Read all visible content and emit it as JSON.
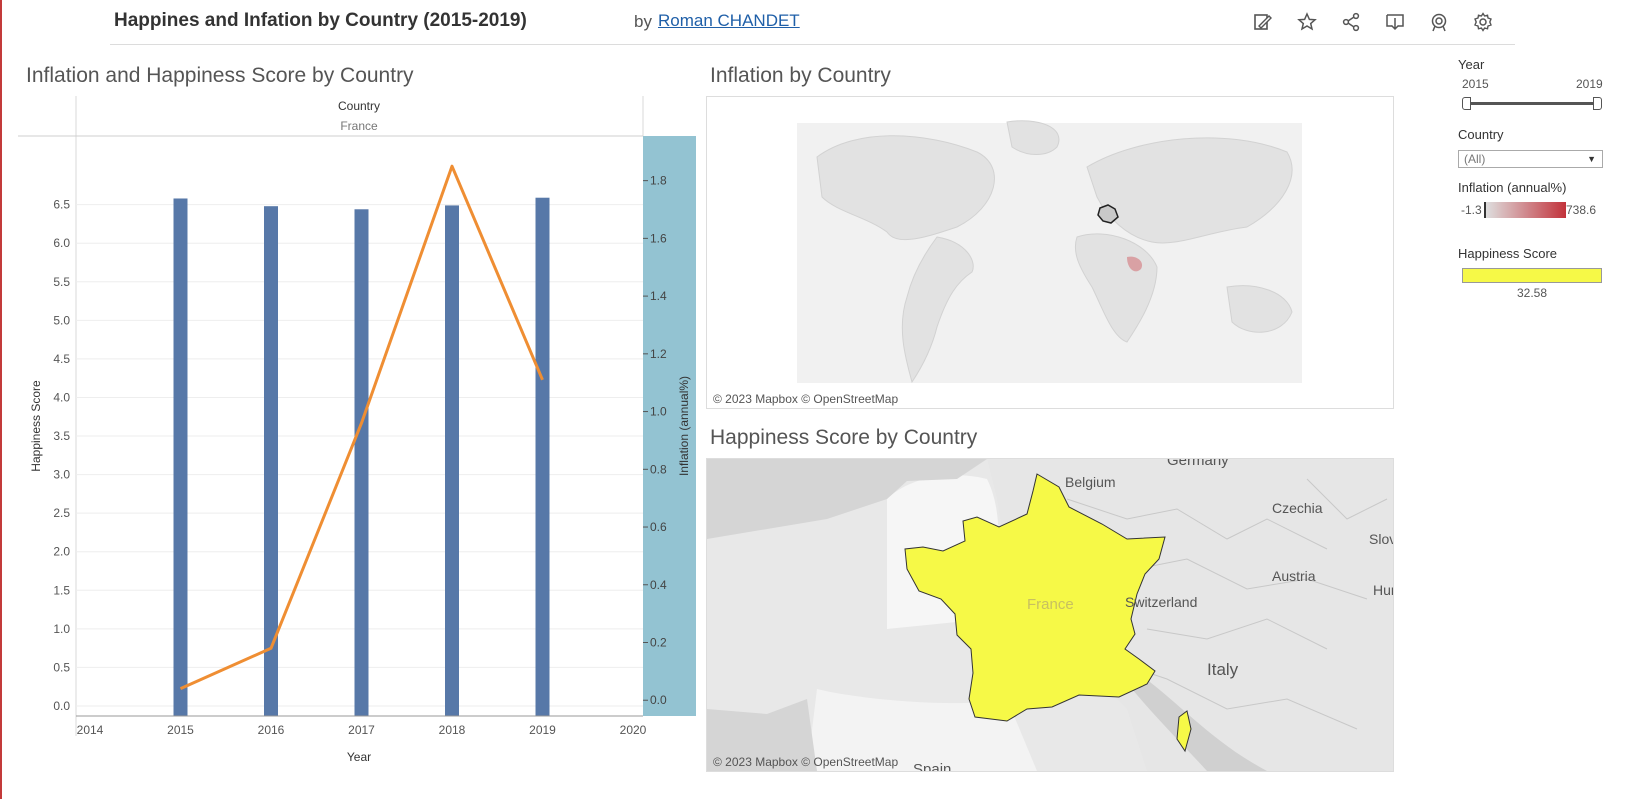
{
  "header": {
    "title": "Happines and Infation by Country (2015-2019)",
    "by": "by",
    "author": "Roman CHANDET",
    "icons": [
      "edit-icon",
      "favorite-star-icon",
      "share-icon",
      "download-icon",
      "metrics-icon",
      "settings-gear-icon"
    ]
  },
  "combo_chart": {
    "title": "Inflation and Happiness Score by Country",
    "column_header": "Country",
    "column_value": "France"
  },
  "chart_data": {
    "type": "bar",
    "x_label": "Year",
    "x_ticks": [
      "2014",
      "2015",
      "2016",
      "2017",
      "2018",
      "2019",
      "2020"
    ],
    "categories": [
      "2015",
      "2016",
      "2017",
      "2018",
      "2019"
    ],
    "y_label": "Happiness Score",
    "y_ticks": [
      "0.0",
      "0.5",
      "1.0",
      "1.5",
      "2.0",
      "2.5",
      "3.0",
      "3.5",
      "4.0",
      "4.5",
      "5.0",
      "5.5",
      "6.0",
      "6.5"
    ],
    "ylim": [
      0,
      7
    ],
    "y2_label": "Inflation (annual%)",
    "y2_ticks": [
      "0.0",
      "0.2",
      "0.4",
      "0.6",
      "0.8",
      "1.0",
      "1.2",
      "1.4",
      "1.6",
      "1.8"
    ],
    "y2lim": [
      -0.02,
      1.92
    ],
    "series": [
      {
        "name": "Happiness Score",
        "type": "bar",
        "axis": "left",
        "color": "#5778a8",
        "values": [
          6.58,
          6.48,
          6.44,
          6.49,
          6.59
        ]
      },
      {
        "name": "Inflation (annual%)",
        "type": "line",
        "axis": "right",
        "color": "#ef8e33",
        "values": [
          0.04,
          0.18,
          0.96,
          1.85,
          1.11
        ]
      }
    ]
  },
  "map_inflation": {
    "title": "Inflation by Country",
    "attribution": "© 2023 Mapbox  © OpenStreetMap"
  },
  "map_happiness": {
    "title": "Happiness Score by Country",
    "attribution": "© 2023 Mapbox  © OpenStreetMap",
    "labels": {
      "germany": "Germany",
      "belgium": "Belgium",
      "czechia": "Czechia",
      "slovakia": "Slov",
      "austria": "Austria",
      "hungary": "Hun",
      "switzerland": "Switzerland",
      "france": "France",
      "italy": "Italy",
      "spain": "Spain"
    }
  },
  "filters": {
    "year_label": "Year",
    "year_min": "2015",
    "year_max": "2019",
    "country_label": "Country",
    "country_value": "(All)",
    "inflation_legend_label": "Inflation (annual%)",
    "inflation_min": "-1.3",
    "inflation_max": "738.6",
    "happiness_legend_label": "Happiness Score",
    "happiness_value": "32.58"
  },
  "colors": {
    "accent_bar": "#5778a8",
    "line": "#ef8e33",
    "axis_band": "#93c3d2",
    "highlight": "#f6f947",
    "inflation_low": "#dedede",
    "inflation_high": "#c2323b"
  }
}
